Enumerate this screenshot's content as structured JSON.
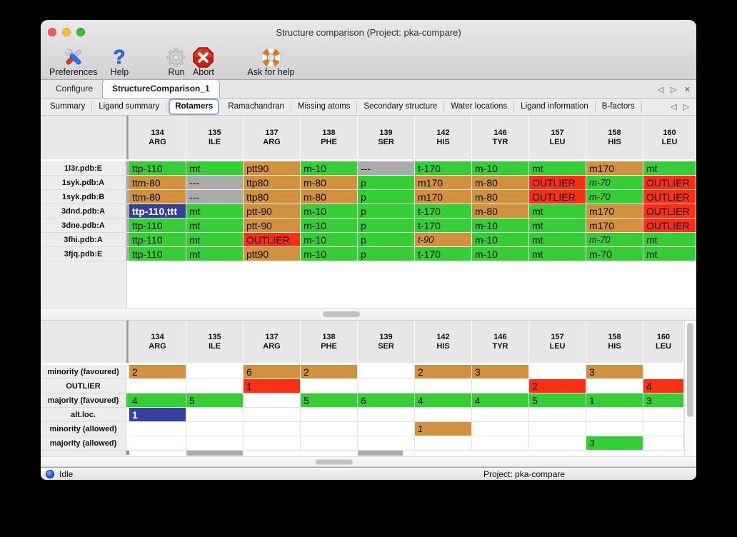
{
  "window": {
    "title": "Structure comparison (Project: pka-compare)"
  },
  "traffic_lights": [
    "close",
    "minimize",
    "zoom"
  ],
  "toolbar": {
    "items": [
      {
        "label": "Preferences",
        "icon": "tools-icon"
      },
      {
        "label": "Help",
        "icon": "question-icon"
      },
      {
        "label": "Run",
        "icon": "gear-icon"
      },
      {
        "label": "Abort",
        "icon": "abort-icon"
      },
      {
        "label": "Ask for help",
        "icon": "lifebuoy-icon"
      }
    ]
  },
  "tabs": {
    "items": [
      {
        "label": "Configure",
        "selected": false
      },
      {
        "label": "StructureComparison_1",
        "selected": true
      }
    ],
    "nav_back": "◁",
    "nav_forward": "▷",
    "nav_close": "✕"
  },
  "subtabs": {
    "selected": "Rotamers",
    "items": [
      "Summary",
      "Ligand summary",
      "Rotamers",
      "Ramachandran",
      "Missing atoms",
      "Secondary structure",
      "Water locations",
      "Ligand information",
      "B-factors"
    ],
    "nav_back": "◁",
    "nav_forward": "▷"
  },
  "columns": [
    {
      "num": "134",
      "res": "ARG"
    },
    {
      "num": "135",
      "res": "ILE"
    },
    {
      "num": "137",
      "res": "ARG"
    },
    {
      "num": "138",
      "res": "PHE"
    },
    {
      "num": "139",
      "res": "SER"
    },
    {
      "num": "142",
      "res": "HIS"
    },
    {
      "num": "146",
      "res": "TYR"
    },
    {
      "num": "157",
      "res": "LEU"
    },
    {
      "num": "158",
      "res": "HIS"
    },
    {
      "num": "160",
      "res": "LEU"
    }
  ],
  "top_table": {
    "strip_default": "x",
    "rows": [
      {
        "label": "1l3r.pdb:E",
        "cells": [
          {
            "t": "ttp-110",
            "c": "g"
          },
          {
            "t": "mt",
            "c": "g"
          },
          {
            "t": "ptt90",
            "c": "o"
          },
          {
            "t": "m-10",
            "c": "g"
          },
          {
            "t": "---",
            "c": "x"
          },
          {
            "t": "t-170",
            "c": "g"
          },
          {
            "t": "m-10",
            "c": "g"
          },
          {
            "t": "mt",
            "c": "g"
          },
          {
            "t": "m170",
            "c": "o"
          },
          {
            "t": "mt",
            "c": "g"
          }
        ]
      },
      {
        "label": "1syk.pdb:A",
        "cells": [
          {
            "t": "ttm-80",
            "c": "o"
          },
          {
            "t": "---",
            "c": "x"
          },
          {
            "t": "ttp80",
            "c": "o"
          },
          {
            "t": "m-80",
            "c": "o"
          },
          {
            "t": "p",
            "c": "g"
          },
          {
            "t": "m170",
            "c": "o"
          },
          {
            "t": "m-80",
            "c": "o"
          },
          {
            "t": "OUTLIER",
            "c": "r"
          },
          {
            "t": "m-70",
            "c": "g",
            "i": true
          },
          {
            "t": "OUTLIER",
            "c": "r"
          }
        ]
      },
      {
        "label": "1syk.pdb:B",
        "cells": [
          {
            "t": "ttm-80",
            "c": "o"
          },
          {
            "t": "---",
            "c": "x"
          },
          {
            "t": "ttp80",
            "c": "o"
          },
          {
            "t": "m-80",
            "c": "o"
          },
          {
            "t": "p",
            "c": "g"
          },
          {
            "t": "m170",
            "c": "o"
          },
          {
            "t": "m-80",
            "c": "o"
          },
          {
            "t": "OUTLIER",
            "c": "r"
          },
          {
            "t": "m-70",
            "c": "g",
            "i": true
          },
          {
            "t": "OUTLIER",
            "c": "r"
          }
        ]
      },
      {
        "label": "3dnd.pdb:A",
        "cells": [
          {
            "t": "ttp-110,ttt",
            "c": "b"
          },
          {
            "t": "mt",
            "c": "g"
          },
          {
            "t": "ptt-90",
            "c": "o"
          },
          {
            "t": "m-10",
            "c": "g"
          },
          {
            "t": "p",
            "c": "g"
          },
          {
            "t": "t-170",
            "c": "g"
          },
          {
            "t": "m-80",
            "c": "o"
          },
          {
            "t": "mt",
            "c": "g"
          },
          {
            "t": "m170",
            "c": "o"
          },
          {
            "t": "OUTLIER",
            "c": "r"
          }
        ]
      },
      {
        "label": "3dne.pdb:A",
        "cells": [
          {
            "t": "ttp-110",
            "c": "g"
          },
          {
            "t": "mt",
            "c": "g"
          },
          {
            "t": "ptt-90",
            "c": "o"
          },
          {
            "t": "m-10",
            "c": "g"
          },
          {
            "t": "p",
            "c": "g"
          },
          {
            "t": "t-170",
            "c": "g"
          },
          {
            "t": "m-10",
            "c": "g"
          },
          {
            "t": "mt",
            "c": "g"
          },
          {
            "t": "m170",
            "c": "o"
          },
          {
            "t": "OUTLIER",
            "c": "r"
          }
        ]
      },
      {
        "label": "3fhi.pdb:A",
        "cells": [
          {
            "t": "ttp-110",
            "c": "g"
          },
          {
            "t": "mt",
            "c": "g"
          },
          {
            "t": "OUTLIER",
            "c": "r"
          },
          {
            "t": "m-10",
            "c": "g"
          },
          {
            "t": "p",
            "c": "g"
          },
          {
            "t": "t-90",
            "c": "o",
            "i": true
          },
          {
            "t": "m-10",
            "c": "g"
          },
          {
            "t": "mt",
            "c": "g"
          },
          {
            "t": "m-70",
            "c": "g",
            "i": true
          },
          {
            "t": "mt",
            "c": "g"
          }
        ]
      },
      {
        "label": "3fjq.pdb:E",
        "cells": [
          {
            "t": "ttp-110",
            "c": "g"
          },
          {
            "t": "mt",
            "c": "g"
          },
          {
            "t": "ptt90",
            "c": "o"
          },
          {
            "t": "m-10",
            "c": "g"
          },
          {
            "t": "p",
            "c": "g"
          },
          {
            "t": "t-170",
            "c": "g"
          },
          {
            "t": "m-10",
            "c": "g"
          },
          {
            "t": "mt",
            "c": "g"
          },
          {
            "t": "m-70",
            "c": "g"
          },
          {
            "t": "mt",
            "c": "g"
          }
        ]
      }
    ]
  },
  "bottom_table": {
    "strip_default": "w",
    "rows": [
      {
        "label": "minority (favoured)",
        "cells": [
          {
            "t": "2",
            "c": "o"
          },
          {},
          {
            "t": "6",
            "c": "o"
          },
          {
            "t": "2",
            "c": "o"
          },
          {},
          {
            "t": "2",
            "c": "o"
          },
          {
            "t": "3",
            "c": "o"
          },
          {},
          {
            "t": "3",
            "c": "o"
          },
          {}
        ]
      },
      {
        "label": "OUTLIER",
        "cells": [
          {},
          {},
          {
            "t": "1",
            "c": "r"
          },
          {},
          {},
          {},
          {},
          {
            "t": "2",
            "c": "r"
          },
          {},
          {
            "t": "4",
            "c": "r"
          }
        ]
      },
      {
        "label": "majority (favoured)",
        "strip": "g",
        "cells": [
          {
            "t": "4",
            "c": "g"
          },
          {
            "t": "5",
            "c": "g"
          },
          {},
          {
            "t": "5",
            "c": "g"
          },
          {
            "t": "6",
            "c": "g"
          },
          {
            "t": "4",
            "c": "g"
          },
          {
            "t": "4",
            "c": "g"
          },
          {
            "t": "5",
            "c": "g"
          },
          {
            "t": "1",
            "c": "g"
          },
          {
            "t": "3",
            "c": "g"
          }
        ]
      },
      {
        "label": "alt.loc.",
        "cells": [
          {
            "t": "1",
            "c": "b"
          },
          {},
          {},
          {},
          {},
          {},
          {},
          {},
          {},
          {}
        ]
      },
      {
        "label": "minority (allowed)",
        "cells": [
          {},
          {},
          {},
          {},
          {},
          {
            "t": "1",
            "c": "o",
            "i": true
          },
          {},
          {},
          {},
          {}
        ]
      },
      {
        "label": "majority (allowed)",
        "cells": [
          {},
          {},
          {},
          {},
          {},
          {},
          {},
          {},
          {
            "t": "3",
            "c": "g",
            "i": true
          },
          {}
        ]
      }
    ],
    "partial_row": {
      "cols": [
        1,
        4
      ]
    }
  },
  "statusbar": {
    "state": "Idle",
    "project": "Project: pka-compare"
  },
  "colors": {
    "green": "#36ce36",
    "orange": "#d2913f",
    "red": "#fa2f15",
    "gray": "#ababab",
    "blue": "#35409d",
    "strip_gray": "#9b9b9b",
    "partial_gray": "#8f8f8f"
  }
}
